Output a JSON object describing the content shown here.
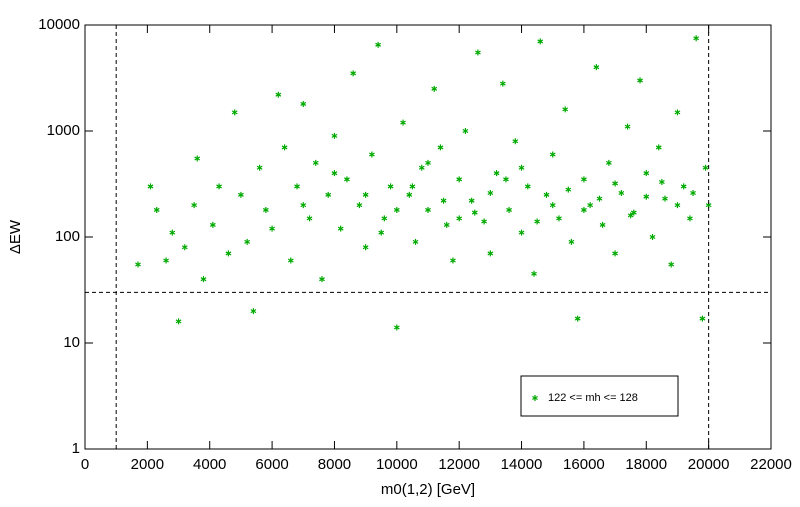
{
  "chart_data": {
    "type": "scatter",
    "x_label": "m0(1,2) [GeV]",
    "y_label": "ΔEW",
    "xlim": [
      0,
      22000
    ],
    "xticks": [
      0,
      2000,
      4000,
      6000,
      8000,
      10000,
      12000,
      14000,
      16000,
      18000,
      20000,
      22000
    ],
    "ylim": [
      1,
      10000
    ],
    "yticks": [
      1,
      10,
      100,
      1000,
      10000
    ],
    "y_log": true,
    "vlines": [
      1000,
      20000
    ],
    "hlines": [
      30
    ],
    "legend": "lower right",
    "series": [
      {
        "name": "122 <= mh <= 128",
        "color": "#00aa00",
        "x": [
          1700,
          2100,
          2300,
          2600,
          2800,
          3000,
          3200,
          3500,
          3600,
          3800,
          4100,
          4300,
          4600,
          4800,
          5000,
          5200,
          5400,
          5600,
          5800,
          6000,
          6200,
          6400,
          6600,
          6800,
          7000,
          7200,
          7400,
          7600,
          7800,
          8000,
          8200,
          8400,
          8600,
          8800,
          9000,
          9200,
          9400,
          9600,
          9800,
          10000,
          10200,
          10400,
          10600,
          10800,
          11000,
          11200,
          11400,
          11600,
          11800,
          12000,
          12200,
          12400,
          12600,
          12800,
          13000,
          13200,
          13400,
          13600,
          13800,
          14000,
          14200,
          14400,
          14600,
          14800,
          15000,
          15200,
          15400,
          15600,
          15800,
          16000,
          16200,
          16400,
          16600,
          16800,
          17000,
          17200,
          17400,
          17600,
          17800,
          18000,
          18200,
          18400,
          18600,
          18800,
          19000,
          19200,
          19400,
          19600,
          19800,
          19900,
          20000,
          7000,
          8000,
          9000,
          10000,
          11000,
          12000,
          13000,
          14000,
          15000,
          16000,
          17000,
          18000,
          19000,
          9500,
          10500,
          11500,
          12500,
          13500,
          14500,
          15500,
          16500,
          17500,
          18500,
          19500
        ],
        "values": [
          55,
          300,
          180,
          60,
          110,
          16,
          80,
          200,
          550,
          40,
          130,
          300,
          70,
          1500,
          250,
          90,
          20,
          450,
          180,
          120,
          2200,
          700,
          60,
          300,
          1800,
          150,
          500,
          40,
          250,
          900,
          120,
          350,
          3500,
          200,
          80,
          600,
          6500,
          150,
          300,
          14,
          1200,
          250,
          90,
          450,
          180,
          2500,
          700,
          130,
          60,
          350,
          1000,
          220,
          5500,
          140,
          70,
          400,
          2800,
          180,
          800,
          110,
          300,
          45,
          7000,
          250,
          600,
          150,
          1600,
          90,
          17,
          350,
          200,
          4000,
          130,
          500,
          70,
          260,
          1100,
          170,
          3000,
          400,
          100,
          700,
          230,
          55,
          1500,
          300,
          150,
          7500,
          17,
          450,
          200,
          200,
          400,
          250,
          180,
          500,
          150,
          260,
          450,
          200,
          180,
          320,
          240,
          200,
          110,
          300,
          220,
          170,
          350,
          140,
          280,
          230,
          160,
          330,
          260
        ]
      }
    ]
  }
}
